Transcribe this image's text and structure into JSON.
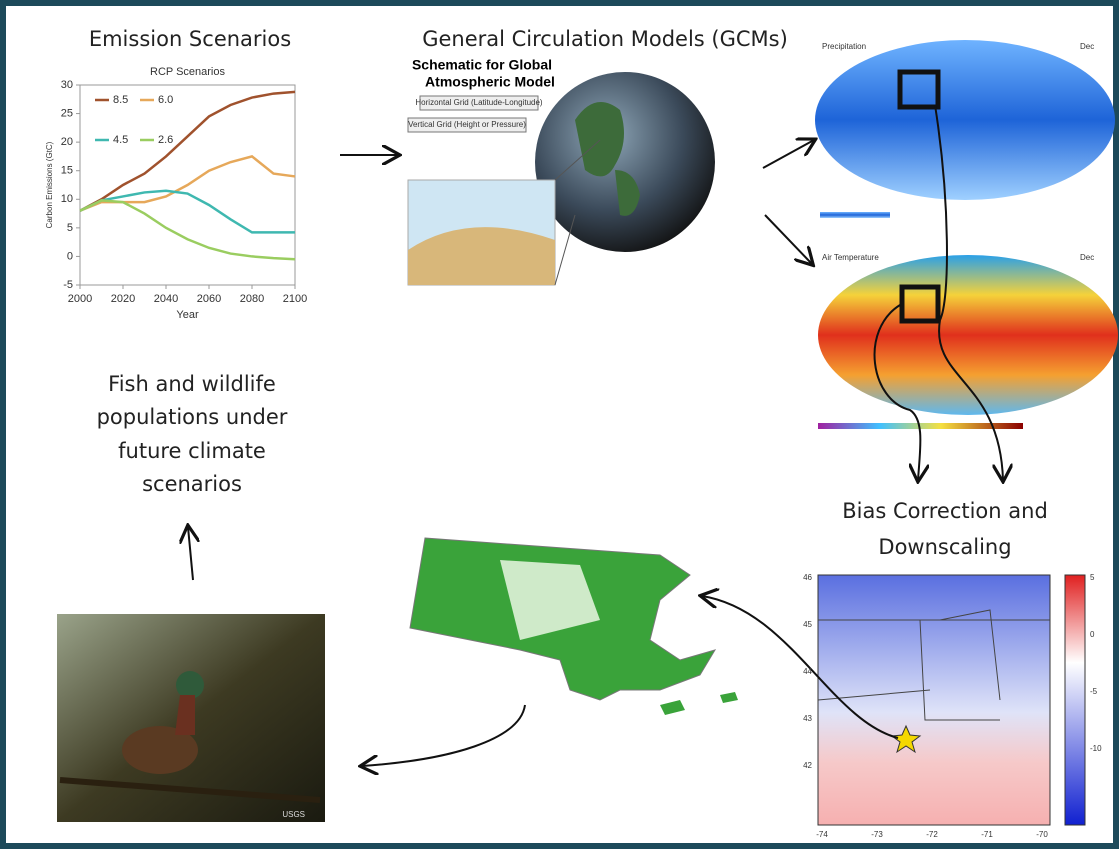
{
  "chart_data": {
    "type": "line",
    "title": "RCP Scenarios",
    "xlabel": "Year",
    "ylabel": "Carbon Emissions (GtC)",
    "x": [
      2000,
      2010,
      2020,
      2030,
      2040,
      2050,
      2060,
      2070,
      2080,
      2090,
      2100
    ],
    "series": [
      {
        "name": "8.5",
        "color": "#a0522d",
        "values": [
          8,
          10,
          12.5,
          14.5,
          17.5,
          21,
          24.5,
          26.5,
          27.8,
          28.5,
          28.8
        ]
      },
      {
        "name": "6.0",
        "color": "#e6a85a",
        "values": [
          8,
          9.5,
          9.5,
          9.5,
          10.5,
          12.5,
          15,
          16.5,
          17.5,
          14.5,
          14
        ]
      },
      {
        "name": "4.5",
        "color": "#3fb8b0",
        "values": [
          8,
          9.8,
          10.5,
          11.2,
          11.5,
          11,
          9,
          6.5,
          4.2,
          4.2,
          4.2
        ]
      },
      {
        "name": "2.6",
        "color": "#9acd60",
        "values": [
          8,
          9.8,
          9.5,
          7.5,
          5,
          3,
          1.5,
          0.5,
          0,
          -0.3,
          -0.5
        ]
      }
    ],
    "xlim": [
      2000,
      2100
    ],
    "ylim": [
      -5,
      30
    ],
    "xticks": [
      2000,
      2020,
      2040,
      2060,
      2080,
      2100
    ],
    "yticks": [
      -5,
      0,
      5,
      10,
      15,
      20,
      25,
      30
    ],
    "grid": false
  },
  "diagram": {
    "emissions_title": "Emission Scenarios",
    "gcm_title": "General Circulation Models (GCMs)",
    "schematic": {
      "title": [
        "Schematic for Global",
        "Atmospheric Model"
      ],
      "horizontal": "Horizontal Grid (Latitude-Longitude)",
      "vertical": "Vertical Grid (Height or Pressure)"
    },
    "precip_map": {
      "title": "Precipitation",
      "month": "Dec"
    },
    "temp_map": {
      "title": "Air Temperature",
      "month": "Dec"
    },
    "bias_title": [
      "Bias Correction and",
      "Downscaling"
    ],
    "fish_title": [
      "Fish and wildlife",
      "populations under",
      "future climate",
      "scenarios"
    ],
    "downscaled_map": {
      "yticks": [
        46,
        45,
        44,
        43,
        42
      ],
      "xticks": [
        -74,
        -73,
        -72,
        -71,
        -70
      ],
      "colorbar_ticks": [
        5,
        0,
        -5,
        -10
      ]
    },
    "photo_credit": "USGS"
  }
}
